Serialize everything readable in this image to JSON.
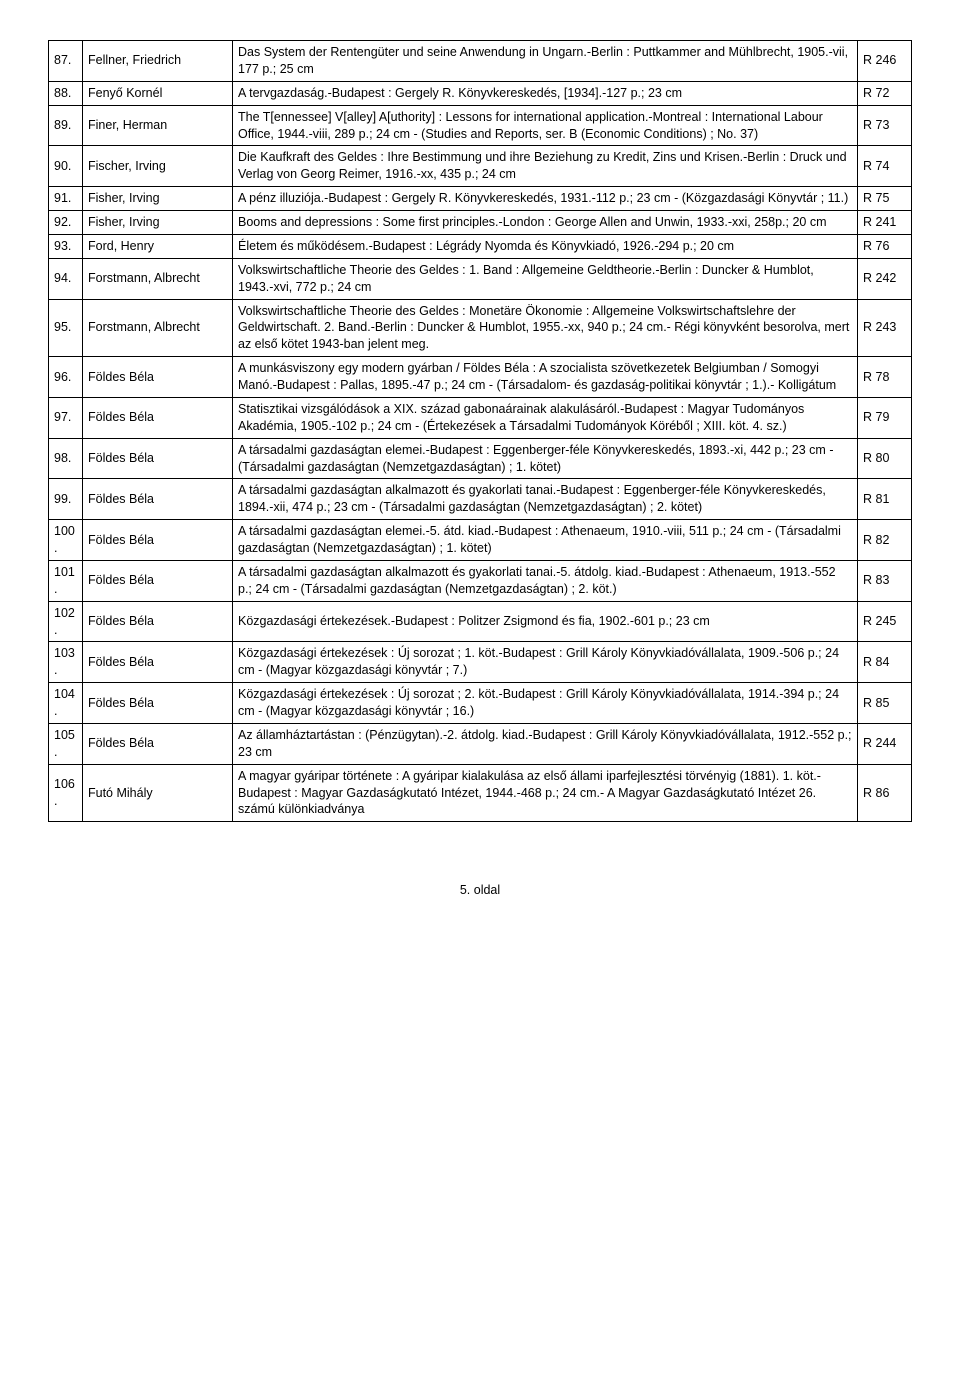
{
  "rows": [
    {
      "n": "87.",
      "author": "Fellner, Friedrich",
      "desc": "Das System der Rentengüter und seine Anwendung in Ungarn.-Berlin : Puttkammer and Mühlbrecht, 1905.-vii, 177 p.; 25 cm",
      "ref": "R 246"
    },
    {
      "n": "88.",
      "author": "Fenyő Kornél",
      "desc": "A tervgazdaság.-Budapest : Gergely R. Könyvkereskedés, [1934].-127 p.; 23 cm",
      "ref": "R 72"
    },
    {
      "n": "89.",
      "author": "Finer, Herman",
      "desc": "The T[ennessee] V[alley] A[uthority] : Lessons for international application.-Montreal : International Labour Office, 1944.-viii, 289 p.; 24 cm - (Studies and Reports, ser. B (Economic Conditions) ; No. 37)",
      "ref": "R 73"
    },
    {
      "n": "90.",
      "author": "Fischer, Irving",
      "desc": "Die Kaufkraft des Geldes : Ihre Bestimmung und ihre Beziehung zu Kredit, Zins und Krisen.-Berlin : Druck und Verlag von Georg Reimer, 1916.-xx, 435 p.; 24 cm",
      "ref": "R 74"
    },
    {
      "n": "91.",
      "author": "Fisher, Irving",
      "desc": "A pénz illuziója.-Budapest : Gergely R. Könyvkereskedés, 1931.-112 p.; 23 cm - (Közgazdasági Könyvtár ; 11.)",
      "ref": "R 75"
    },
    {
      "n": "92.",
      "author": "Fisher, Irving",
      "desc": "Booms and depressions : Some first principles.-London : George Allen and Unwin, 1933.-xxi, 258p.; 20 cm",
      "ref": "R 241"
    },
    {
      "n": "93.",
      "author": "Ford, Henry",
      "desc": "Életem és működésem.-Budapest : Légrády Nyomda és Könyvkiadó, 1926.-294 p.; 20 cm",
      "ref": "R 76"
    },
    {
      "n": "94.",
      "author": "Forstmann, Albrecht",
      "desc": "Volkswirtschaftliche Theorie des Geldes : 1. Band : Allgemeine Geldtheorie.-Berlin : Duncker & Humblot, 1943.-xvi, 772 p.; 24 cm",
      "ref": "R 242"
    },
    {
      "n": "95.",
      "author": "Forstmann, Albrecht",
      "desc": "Volkswirtschaftliche Theorie des Geldes : Monetäre Ökonomie : Allgemeine Volkswirtschaftslehre der Geldwirtschaft. 2. Band.-Berlin : Duncker & Humblot, 1955.-xx, 940 p.; 24 cm.- Régi könyvként besorolva, mert az első kötet 1943-ban jelent meg.",
      "ref": "R 243"
    },
    {
      "n": "96.",
      "author": "Földes Béla",
      "desc": "A munkásviszony egy modern gyárban / Földes Béla : A szocialista szövetkezetek Belgiumban / Somogyi Manó.-Budapest : Pallas, 1895.-47 p.; 24 cm - (Társadalom- és gazdaság-politikai könyvtár ; 1.).- Kolligátum",
      "ref": "R 78"
    },
    {
      "n": "97.",
      "author": "Földes Béla",
      "desc": "Statisztikai vizsgálódások a XIX. század gabonaárainak alakulásáról.-Budapest : Magyar Tudományos Akadémia, 1905.-102 p.; 24 cm - (Értekezések a Társadalmi Tudományok Köréből ; XIII. köt. 4. sz.)",
      "ref": "R 79"
    },
    {
      "n": "98.",
      "author": "Földes Béla",
      "desc": "A társadalmi gazdaságtan elemei.-Budapest : Eggenberger-féle Könyvkereskedés, 1893.-xi, 442 p.; 23 cm - (Társadalmi gazdaságtan (Nemzetgazdaságtan) ; 1. kötet)",
      "ref": "R 80"
    },
    {
      "n": "99.",
      "author": "Földes Béla",
      "desc": "A társadalmi gazdaságtan alkalmazott és gyakorlati tanai.-Budapest : Eggenberger-féle Könyvkereskedés, 1894.-xii, 474 p.; 23 cm - (Társadalmi gazdaságtan (Nemzetgazdaságtan) ; 2. kötet)",
      "ref": "R 81"
    },
    {
      "n": "100.",
      "author": "Földes Béla",
      "desc": "A társadalmi gazdaságtan elemei.-5. átd. kiad.-Budapest : Athenaeum, 1910.-viii, 511 p.; 24 cm - (Társadalmi gazdaságtan (Nemzetgazdaságtan) ; 1. kötet)",
      "ref": "R 82"
    },
    {
      "n": "101.",
      "author": "Földes Béla",
      "desc": "A társadalmi gazdaságtan alkalmazott és gyakorlati tanai.-5. átdolg. kiad.-Budapest : Athenaeum, 1913.-552 p.; 24 cm - (Társadalmi gazdaságtan (Nemzetgazdaságtan) ; 2. köt.)",
      "ref": "R 83"
    },
    {
      "n": "102.",
      "author": "Földes Béla",
      "desc": "Közgazdasági értekezések.-Budapest : Politzer Zsigmond és fia, 1902.-601 p.; 23 cm",
      "ref": "R 245"
    },
    {
      "n": "103.",
      "author": "Földes Béla",
      "desc": "Közgazdasági értekezések : Új sorozat ; 1. köt.-Budapest : Grill Károly Könyvkiadóvállalata, 1909.-506 p.; 24 cm - (Magyar közgazdasági könyvtár ; 7.)",
      "ref": "R 84"
    },
    {
      "n": "104.",
      "author": "Földes Béla",
      "desc": "Közgazdasági értekezések : Új sorozat ; 2. köt.-Budapest : Grill Károly Könyvkiadóvállalata, 1914.-394 p.; 24 cm - (Magyar közgazdasági könyvtár ; 16.)",
      "ref": "R 85"
    },
    {
      "n": "105.",
      "author": "Földes Béla",
      "desc": "Az államháztartástan : (Pénzügytan).-2. átdolg. kiad.-Budapest : Grill Károly Könyvkiadóvállalata, 1912.-552 p.; 23 cm",
      "ref": "R 244"
    },
    {
      "n": "106.",
      "author": "Futó Mihály",
      "desc": "A magyar gyáripar története : A gyáripar kialakulása az első állami iparfejlesztési törvényig (1881). 1. köt.-Budapest : Magyar Gazdaságkutató Intézet, 1944.-468 p.; 24 cm.- A Magyar Gazdaságkutató Intézet 26. számú különkiadványa",
      "ref": "R 86"
    }
  ],
  "footer": "5. oldal"
}
